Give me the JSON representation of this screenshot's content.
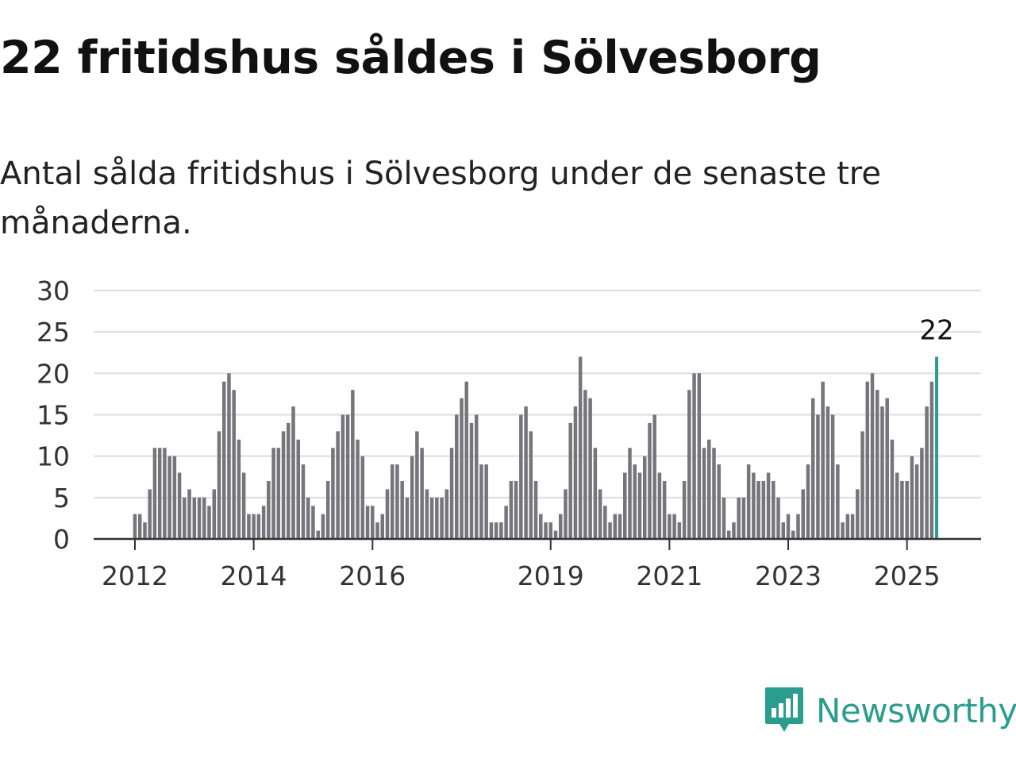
{
  "title": "22 fritidshus såldes i Sölvesborg",
  "subtitle": "Antal sålda fritidshus i Sölvesborg under de senaste tre månaderna.",
  "brand": {
    "name": "Newsworthy",
    "icon": "newsworthy-logo-icon",
    "color": "#2a9d8f"
  },
  "colors": {
    "bar": "#76757b",
    "highlight": "#2a9d8f",
    "grid": "#dddddd",
    "axis": "#333333"
  },
  "chart_data": {
    "type": "bar",
    "title": "22 fritidshus såldes i Sölvesborg",
    "subtitle": "Antal sålda fritidshus i Sölvesborg under de senaste tre månaderna.",
    "xlabel": "",
    "ylabel": "",
    "ylim": [
      0,
      30
    ],
    "yticks": [
      0,
      5,
      10,
      15,
      20,
      25,
      30
    ],
    "xtick_labels": [
      "2012",
      "2014",
      "2016",
      "2019",
      "2021",
      "2023",
      "2025"
    ],
    "start": "2012-01",
    "grid": true,
    "legend": "none",
    "last_value_label": "22",
    "values": [
      3,
      3,
      2,
      6,
      11,
      11,
      11,
      10,
      10,
      8,
      5,
      6,
      5,
      5,
      5,
      4,
      6,
      13,
      19,
      20,
      18,
      12,
      8,
      3,
      3,
      3,
      4,
      7,
      11,
      11,
      13,
      14,
      16,
      12,
      9,
      5,
      4,
      1,
      3,
      7,
      11,
      13,
      15,
      15,
      18,
      12,
      10,
      4,
      4,
      2,
      3,
      6,
      9,
      9,
      7,
      5,
      10,
      13,
      11,
      6,
      5,
      5,
      5,
      6,
      11,
      15,
      17,
      19,
      14,
      15,
      9,
      9,
      2,
      2,
      2,
      4,
      7,
      7,
      15,
      16,
      13,
      7,
      3,
      2,
      2,
      1,
      3,
      6,
      14,
      16,
      22,
      18,
      17,
      11,
      6,
      4,
      2,
      3,
      3,
      8,
      11,
      9,
      8,
      10,
      14,
      15,
      8,
      7,
      3,
      3,
      2,
      7,
      18,
      20,
      20,
      11,
      12,
      11,
      9,
      5,
      1,
      2,
      5,
      5,
      9,
      8,
      7,
      7,
      8,
      7,
      5,
      2,
      3,
      1,
      3,
      6,
      9,
      17,
      15,
      19,
      16,
      15,
      9,
      2,
      3,
      3,
      6,
      13,
      19,
      20,
      18,
      16,
      17,
      12,
      8,
      7,
      7,
      10,
      9,
      11,
      16,
      19,
      22
    ]
  }
}
